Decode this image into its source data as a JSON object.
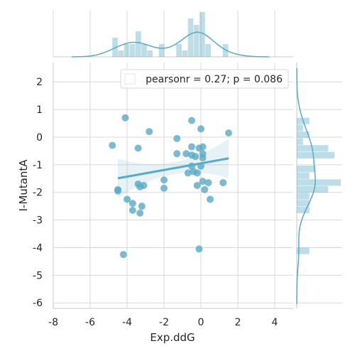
{
  "chart_data": {
    "type": "scatter",
    "subtype": "jointplot-regression",
    "xlabel": "Exp.ddG",
    "ylabel": "I-MutantA",
    "xlim": [
      -8,
      5
    ],
    "ylim": [
      -6.2,
      2.7
    ],
    "xticks": [
      -8,
      -6,
      -4,
      -2,
      0,
      2,
      4
    ],
    "yticks": [
      -6,
      -5,
      -4,
      -3,
      -2,
      -1,
      0,
      1,
      2
    ],
    "grid": true,
    "color": "#5ba9c6",
    "legend": {
      "text": "pearsonr = 0.27; p = 0.086",
      "placement": "top-right"
    },
    "regression": {
      "slope": 0.12,
      "intercept": -0.95,
      "x_range": [
        -4.5,
        1.5
      ]
    },
    "points": [
      {
        "x": -4.8,
        "y": -0.3
      },
      {
        "x": -4.5,
        "y": -1.9
      },
      {
        "x": -4.5,
        "y": -1.95
      },
      {
        "x": -4.2,
        "y": -4.25
      },
      {
        "x": -4.1,
        "y": 0.7
      },
      {
        "x": -4.0,
        "y": -2.25
      },
      {
        "x": -3.7,
        "y": -2.4
      },
      {
        "x": -3.7,
        "y": -2.65
      },
      {
        "x": -3.4,
        "y": -0.4
      },
      {
        "x": -3.4,
        "y": -1.7
      },
      {
        "x": -3.3,
        "y": -1.8
      },
      {
        "x": -3.3,
        "y": -2.75
      },
      {
        "x": -3.2,
        "y": -2.5
      },
      {
        "x": -3.1,
        "y": -1.75
      },
      {
        "x": -2.8,
        "y": 0.2
      },
      {
        "x": -2.0,
        "y": -1.55
      },
      {
        "x": -2.0,
        "y": -1.85
      },
      {
        "x": -1.3,
        "y": -0.05
      },
      {
        "x": -1.3,
        "y": -0.6
      },
      {
        "x": -0.8,
        "y": -0.6
      },
      {
        "x": -0.7,
        "y": -1.3
      },
      {
        "x": -0.5,
        "y": 0.6
      },
      {
        "x": -0.5,
        "y": -0.35
      },
      {
        "x": -0.5,
        "y": -0.65
      },
      {
        "x": -0.5,
        "y": -1.05
      },
      {
        "x": -0.4,
        "y": -1.25
      },
      {
        "x": -0.3,
        "y": -0.7
      },
      {
        "x": -0.2,
        "y": -1.3
      },
      {
        "x": -0.2,
        "y": -1.75
      },
      {
        "x": -0.1,
        "y": -0.4
      },
      {
        "x": -0.1,
        "y": -4.05
      },
      {
        "x": 0.0,
        "y": 0.3
      },
      {
        "x": 0.0,
        "y": -1.05
      },
      {
        "x": 0.1,
        "y": -0.35
      },
      {
        "x": 0.1,
        "y": -0.6
      },
      {
        "x": 0.1,
        "y": -0.75
      },
      {
        "x": 0.1,
        "y": -1.6
      },
      {
        "x": 0.2,
        "y": -1.9
      },
      {
        "x": 0.4,
        "y": -1.65
      },
      {
        "x": 0.5,
        "y": -2.25
      },
      {
        "x": 1.2,
        "y": -1.65
      },
      {
        "x": 1.5,
        "y": 0.15
      }
    ]
  }
}
